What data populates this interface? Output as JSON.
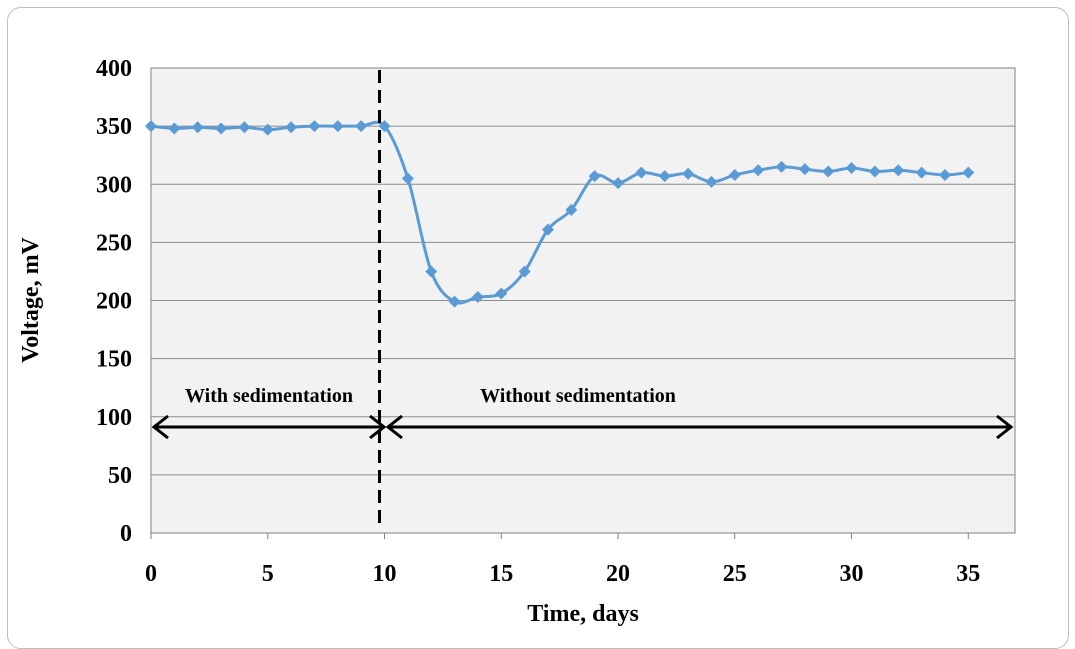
{
  "chart_data": {
    "type": "line",
    "xlabel": "Time, days",
    "ylabel": "Voltage, mV",
    "xlim": [
      0,
      37
    ],
    "ylim": [
      0,
      400
    ],
    "x_ticks": [
      "0",
      "5",
      "10",
      "15",
      "20",
      "25",
      "30",
      "35"
    ],
    "y_ticks": [
      "0",
      "50",
      "100",
      "150",
      "200",
      "250",
      "300",
      "350",
      "400"
    ],
    "grid": "horizontal",
    "series": [
      {
        "marker": "diamond",
        "color": "#5b9bd5",
        "x": [
          0,
          1,
          2,
          3,
          4,
          5,
          6,
          7,
          8,
          9,
          10,
          11,
          12,
          13,
          14,
          15,
          16,
          17,
          18,
          19,
          20,
          21,
          22,
          23,
          24,
          25,
          26,
          27,
          28,
          29,
          30,
          31,
          32,
          33,
          34,
          35
        ],
        "y": [
          350,
          348,
          349,
          348,
          349,
          347,
          349,
          350,
          350,
          350,
          350,
          305,
          225,
          199,
          203,
          206,
          225,
          261,
          278,
          307,
          301,
          310,
          307,
          309,
          302,
          308,
          312,
          315,
          313,
          311,
          314,
          311,
          312,
          310,
          308,
          310
        ]
      }
    ],
    "divider": {
      "x": 10,
      "style": "dashed"
    },
    "annotations": [
      {
        "text": "With sedimentation",
        "x_from": 0,
        "x_to": 10,
        "y": 90
      },
      {
        "text": "Without sedimentation",
        "x_from": 10,
        "x_to": 37,
        "y": 90
      }
    ]
  }
}
